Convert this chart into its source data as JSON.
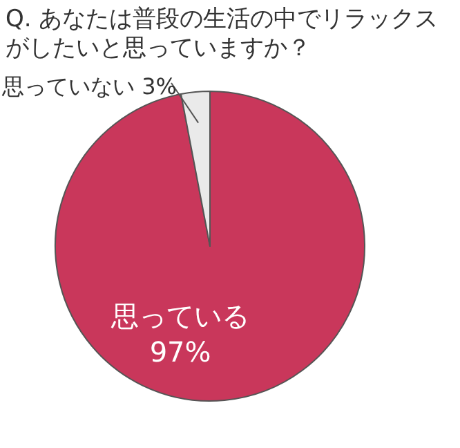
{
  "chart_data": {
    "type": "pie",
    "title": "Q. あなたは普段の生活の中でリラックスがしたいと思っていますか？",
    "categories": [
      "思っている",
      "思っていない"
    ],
    "values": [
      97,
      3
    ],
    "value_labels": [
      "97%",
      "3%"
    ],
    "colors": [
      "#c9375b",
      "#eaeaea"
    ]
  }
}
